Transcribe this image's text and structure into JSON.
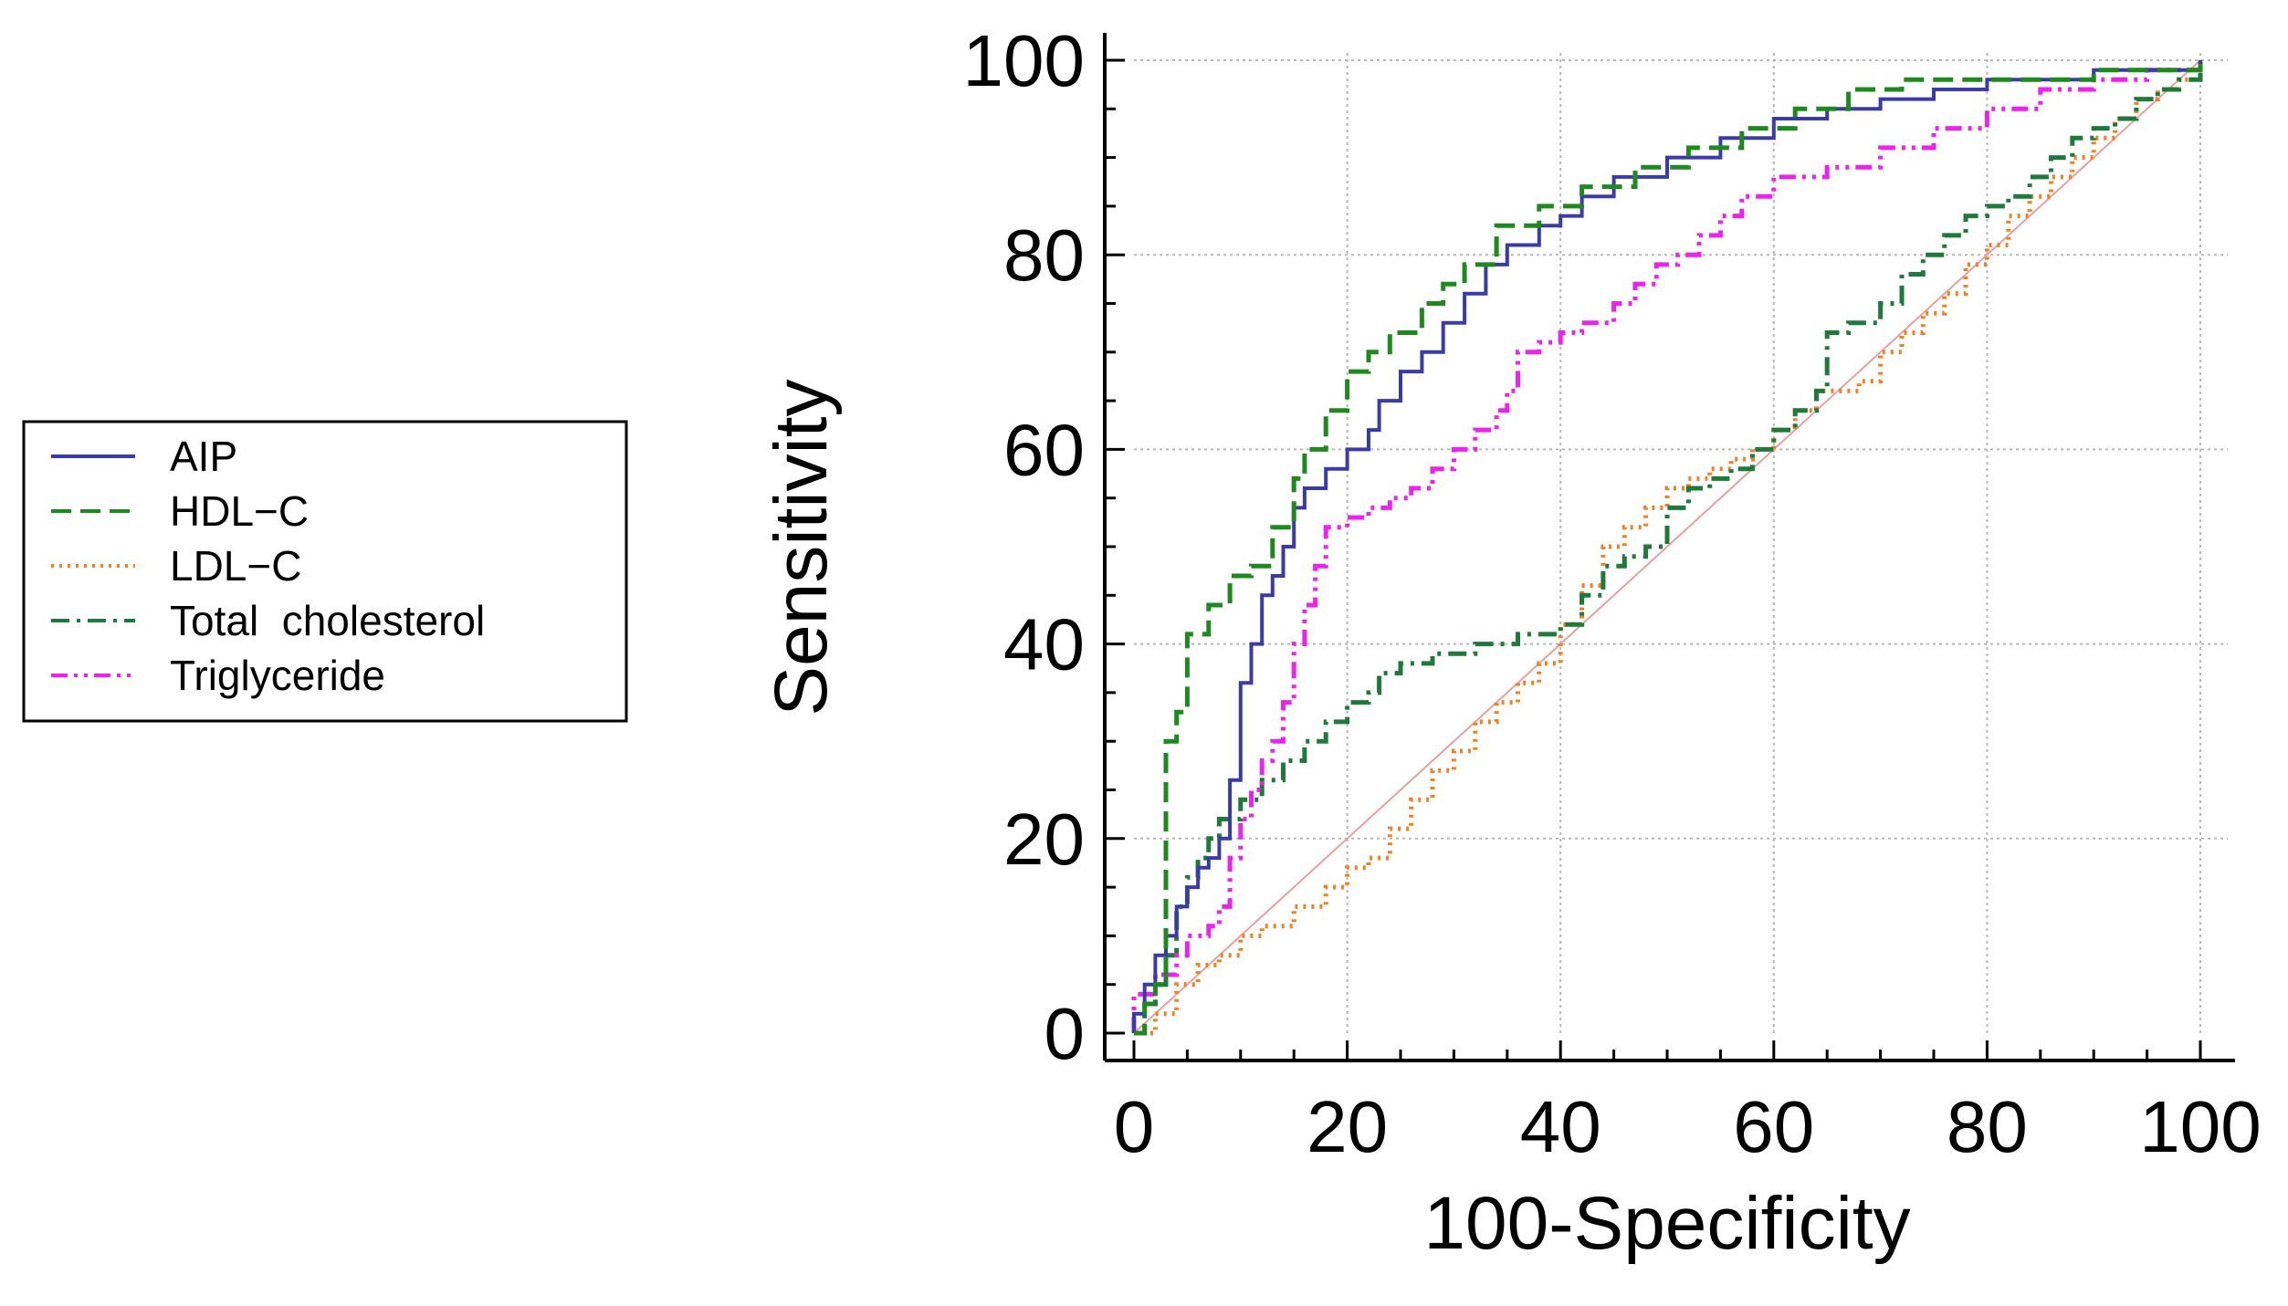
{
  "chart_data": {
    "type": "line",
    "title": "",
    "xlabel": "100-Specificity",
    "ylabel": "Sensitivity",
    "xlim": [
      0,
      100
    ],
    "ylim": [
      0,
      100
    ],
    "x_ticks": [
      "0",
      "20",
      "40",
      "60",
      "80",
      "100"
    ],
    "y_ticks": [
      "0",
      "20",
      "40",
      "60",
      "80",
      "100"
    ],
    "grid": true,
    "legend_position": "left",
    "reference_line": {
      "name": "Reference (diagonal)",
      "color": "#e8a0a0",
      "points": [
        [
          0,
          0
        ],
        [
          100,
          100
        ]
      ]
    },
    "series": [
      {
        "name": "AIP",
        "color": "#3a3aa8",
        "style": "solid",
        "points": [
          [
            0,
            0
          ],
          [
            0,
            2
          ],
          [
            1,
            5
          ],
          [
            2,
            8
          ],
          [
            3,
            10
          ],
          [
            4,
            13
          ],
          [
            5,
            15
          ],
          [
            6,
            17
          ],
          [
            7,
            18
          ],
          [
            8,
            20
          ],
          [
            9,
            26
          ],
          [
            10,
            30
          ],
          [
            10,
            36
          ],
          [
            11,
            40
          ],
          [
            12,
            45
          ],
          [
            13,
            47
          ],
          [
            14,
            50
          ],
          [
            15,
            54
          ],
          [
            16,
            56
          ],
          [
            18,
            58
          ],
          [
            20,
            60
          ],
          [
            22,
            62
          ],
          [
            23,
            65
          ],
          [
            25,
            68
          ],
          [
            27,
            70
          ],
          [
            29,
            73
          ],
          [
            31,
            76
          ],
          [
            33,
            79
          ],
          [
            35,
            81
          ],
          [
            38,
            83
          ],
          [
            40,
            84
          ],
          [
            42,
            86
          ],
          [
            45,
            88
          ],
          [
            50,
            90
          ],
          [
            55,
            92
          ],
          [
            60,
            94
          ],
          [
            65,
            95
          ],
          [
            70,
            96
          ],
          [
            75,
            97
          ],
          [
            80,
            98
          ],
          [
            85,
            98
          ],
          [
            90,
            99
          ],
          [
            95,
            99
          ],
          [
            100,
            100
          ]
        ]
      },
      {
        "name": "HDL−C",
        "color": "#1e8a1e",
        "style": "dashed",
        "points": [
          [
            0,
            0
          ],
          [
            1,
            3
          ],
          [
            2,
            5
          ],
          [
            3,
            10
          ],
          [
            3,
            30
          ],
          [
            4,
            33
          ],
          [
            5,
            41
          ],
          [
            7,
            44
          ],
          [
            9,
            47
          ],
          [
            11,
            48
          ],
          [
            13,
            52
          ],
          [
            15,
            57
          ],
          [
            16,
            60
          ],
          [
            18,
            64
          ],
          [
            20,
            68
          ],
          [
            22,
            70
          ],
          [
            24,
            72
          ],
          [
            27,
            75
          ],
          [
            29,
            77
          ],
          [
            31,
            79
          ],
          [
            34,
            83
          ],
          [
            38,
            85
          ],
          [
            42,
            87
          ],
          [
            47,
            89
          ],
          [
            52,
            91
          ],
          [
            57,
            93
          ],
          [
            62,
            95
          ],
          [
            67,
            97
          ],
          [
            72,
            98
          ],
          [
            80,
            98
          ],
          [
            90,
            99
          ],
          [
            100,
            100
          ]
        ]
      },
      {
        "name": "LDL−C",
        "color": "#f08020",
        "style": "dotted",
        "points": [
          [
            0,
            0
          ],
          [
            2,
            2
          ],
          [
            4,
            5
          ],
          [
            6,
            7
          ],
          [
            8,
            8
          ],
          [
            10,
            10
          ],
          [
            12,
            11
          ],
          [
            15,
            13
          ],
          [
            18,
            15
          ],
          [
            20,
            17
          ],
          [
            22,
            18
          ],
          [
            24,
            21
          ],
          [
            26,
            24
          ],
          [
            28,
            27
          ],
          [
            30,
            29
          ],
          [
            32,
            32
          ],
          [
            34,
            34
          ],
          [
            36,
            36
          ],
          [
            38,
            38
          ],
          [
            40,
            42
          ],
          [
            42,
            46
          ],
          [
            44,
            50
          ],
          [
            46,
            52
          ],
          [
            48,
            54
          ],
          [
            50,
            56
          ],
          [
            52,
            57
          ],
          [
            54,
            58
          ],
          [
            56,
            59
          ],
          [
            58,
            60
          ],
          [
            60,
            62
          ],
          [
            62,
            64
          ],
          [
            64,
            66
          ],
          [
            66,
            66
          ],
          [
            68,
            67
          ],
          [
            70,
            70
          ],
          [
            72,
            72
          ],
          [
            74,
            74
          ],
          [
            76,
            76
          ],
          [
            78,
            79
          ],
          [
            80,
            81
          ],
          [
            82,
            84
          ],
          [
            84,
            86
          ],
          [
            86,
            88
          ],
          [
            88,
            90
          ],
          [
            90,
            92
          ],
          [
            92,
            94
          ],
          [
            94,
            96
          ],
          [
            96,
            97
          ],
          [
            98,
            98
          ],
          [
            100,
            100
          ]
        ]
      },
      {
        "name": "Total  cholesterol",
        "color": "#1e7a3a",
        "style": "dashdot",
        "points": [
          [
            0,
            0
          ],
          [
            1,
            3
          ],
          [
            2,
            5
          ],
          [
            3,
            8
          ],
          [
            4,
            13
          ],
          [
            5,
            16
          ],
          [
            6,
            18
          ],
          [
            7,
            20
          ],
          [
            8,
            22
          ],
          [
            10,
            24
          ],
          [
            12,
            26
          ],
          [
            14,
            28
          ],
          [
            16,
            30
          ],
          [
            18,
            32
          ],
          [
            20,
            34
          ],
          [
            22,
            35
          ],
          [
            23,
            37
          ],
          [
            25,
            38
          ],
          [
            28,
            39
          ],
          [
            32,
            40
          ],
          [
            36,
            41
          ],
          [
            40,
            42
          ],
          [
            42,
            45
          ],
          [
            44,
            48
          ],
          [
            46,
            49
          ],
          [
            48,
            50
          ],
          [
            50,
            54
          ],
          [
            52,
            56
          ],
          [
            54,
            57
          ],
          [
            56,
            58
          ],
          [
            58,
            60
          ],
          [
            60,
            62
          ],
          [
            62,
            64
          ],
          [
            64,
            66
          ],
          [
            65,
            72
          ],
          [
            67,
            73
          ],
          [
            70,
            75
          ],
          [
            72,
            78
          ],
          [
            74,
            80
          ],
          [
            76,
            82
          ],
          [
            78,
            84
          ],
          [
            80,
            85
          ],
          [
            82,
            86
          ],
          [
            84,
            88
          ],
          [
            86,
            90
          ],
          [
            88,
            92
          ],
          [
            90,
            93
          ],
          [
            92,
            94
          ],
          [
            94,
            96
          ],
          [
            96,
            97
          ],
          [
            98,
            98
          ],
          [
            100,
            100
          ]
        ]
      },
      {
        "name": "Triglyceride",
        "color": "#ee22ee",
        "style": "dashdotdot",
        "points": [
          [
            0,
            0
          ],
          [
            0,
            4
          ],
          [
            2,
            6
          ],
          [
            4,
            8
          ],
          [
            5,
            10
          ],
          [
            7,
            11
          ],
          [
            8,
            13
          ],
          [
            9,
            18
          ],
          [
            10,
            22
          ],
          [
            11,
            25
          ],
          [
            12,
            28
          ],
          [
            13,
            30
          ],
          [
            14,
            34
          ],
          [
            15,
            40
          ],
          [
            16,
            44
          ],
          [
            17,
            48
          ],
          [
            18,
            52
          ],
          [
            20,
            53
          ],
          [
            22,
            54
          ],
          [
            24,
            55
          ],
          [
            26,
            56
          ],
          [
            28,
            58
          ],
          [
            30,
            60
          ],
          [
            32,
            62
          ],
          [
            34,
            64
          ],
          [
            35,
            66
          ],
          [
            36,
            70
          ],
          [
            38,
            71
          ],
          [
            40,
            72
          ],
          [
            42,
            73
          ],
          [
            45,
            75
          ],
          [
            47,
            77
          ],
          [
            49,
            79
          ],
          [
            51,
            80
          ],
          [
            53,
            82
          ],
          [
            55,
            84
          ],
          [
            57,
            86
          ],
          [
            60,
            88
          ],
          [
            65,
            89
          ],
          [
            70,
            91
          ],
          [
            75,
            93
          ],
          [
            80,
            95
          ],
          [
            85,
            97
          ],
          [
            90,
            98
          ],
          [
            95,
            99
          ],
          [
            100,
            100
          ]
        ]
      }
    ]
  }
}
